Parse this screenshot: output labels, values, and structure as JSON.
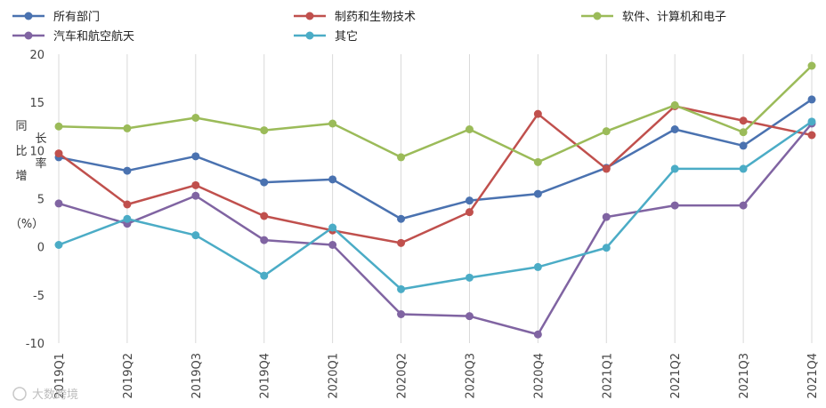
{
  "chart_data": {
    "type": "line",
    "title": "",
    "xlabel": "",
    "ylabel": "同比增长率（%）",
    "categories": [
      "2019Q1",
      "2019Q2",
      "2019Q3",
      "2019Q4",
      "2020Q1",
      "2020Q2",
      "2020Q3",
      "2020Q4",
      "2021Q1",
      "2021Q2",
      "2021Q3",
      "2021Q4"
    ],
    "ylim": [
      -10,
      20
    ],
    "yticks": [
      -10,
      -5,
      0,
      5,
      10,
      15,
      20
    ],
    "grid": "vertical",
    "legend_position": "top",
    "series": [
      {
        "name": "所有部门",
        "color": "#4a72b0",
        "values": [
          9.3,
          7.9,
          9.4,
          6.7,
          7.0,
          2.9,
          4.8,
          5.5,
          8.2,
          12.2,
          10.5,
          15.3
        ]
      },
      {
        "name": "制药和生物技术",
        "color": "#c0504d",
        "values": [
          9.7,
          4.4,
          6.4,
          3.2,
          1.7,
          0.4,
          3.6,
          13.8,
          8.1,
          14.6,
          13.1,
          11.6
        ]
      },
      {
        "name": "软件、计算机和电子",
        "color": "#9bbb59",
        "values": [
          12.5,
          12.3,
          13.4,
          12.1,
          12.8,
          9.3,
          12.2,
          8.8,
          12.0,
          14.7,
          11.9,
          18.8
        ]
      },
      {
        "name": "汽车和航空航天",
        "color": "#8064a2",
        "values": [
          4.5,
          2.4,
          5.3,
          0.7,
          0.2,
          -7.0,
          -7.2,
          -9.1,
          3.1,
          4.3,
          4.3,
          12.8
        ]
      },
      {
        "name": "其它",
        "color": "#4bacc6",
        "values": [
          0.2,
          2.9,
          1.2,
          -3.0,
          2.0,
          -4.4,
          -3.2,
          -2.1,
          -0.1,
          8.1,
          8.1,
          13.0
        ]
      }
    ]
  },
  "watermark": "大数跨境"
}
